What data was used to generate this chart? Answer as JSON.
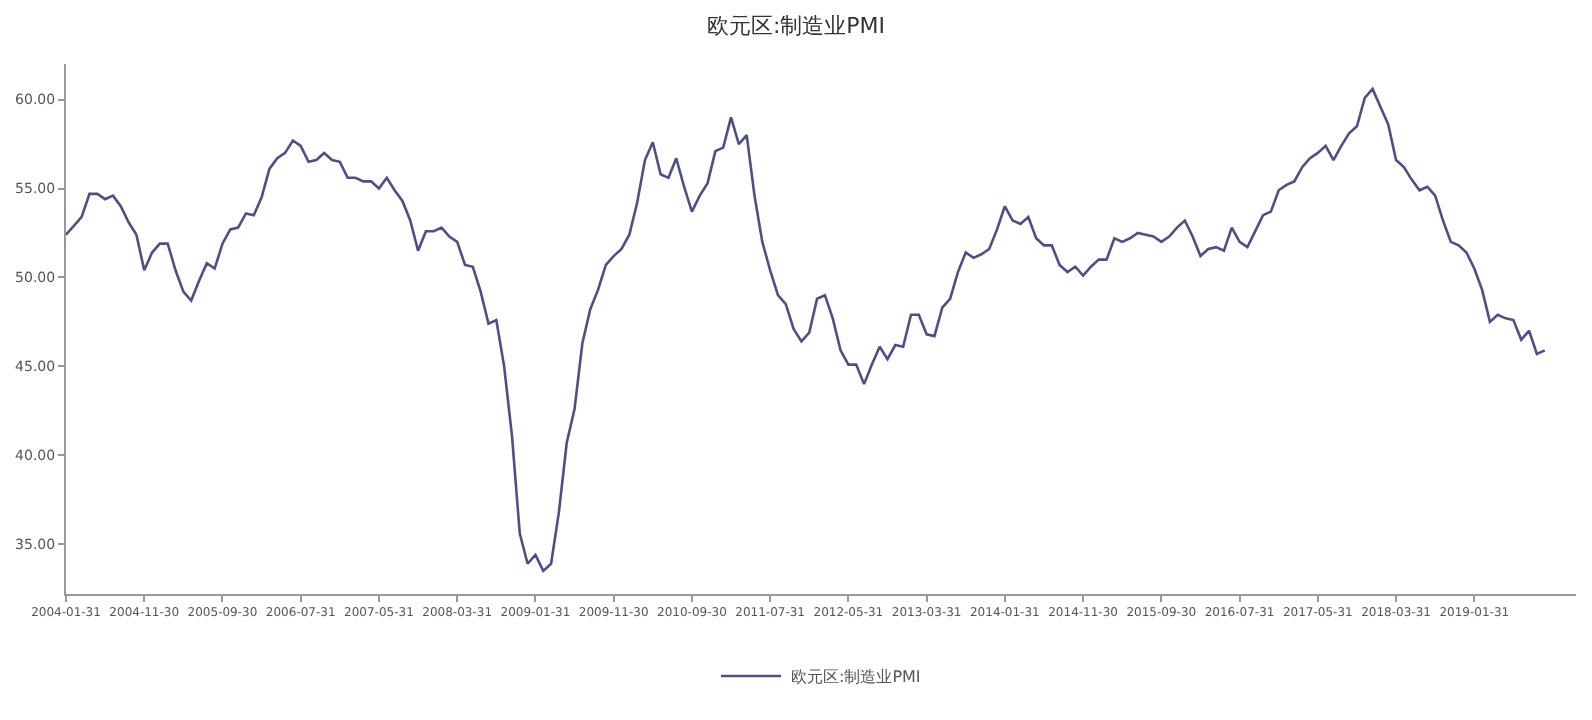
{
  "chart_data": {
    "type": "line",
    "title": "欧元区:制造业PMI",
    "categories": [
      "2004-01-31",
      null,
      null,
      null,
      null,
      null,
      null,
      null,
      null,
      null,
      "2004-11-30",
      null,
      null,
      null,
      null,
      null,
      null,
      null,
      null,
      null,
      "2005-09-30",
      null,
      null,
      null,
      null,
      null,
      null,
      null,
      null,
      null,
      "2006-07-31",
      null,
      null,
      null,
      null,
      null,
      null,
      null,
      null,
      null,
      "2007-05-31",
      null,
      null,
      null,
      null,
      null,
      null,
      null,
      null,
      null,
      "2008-03-31",
      null,
      null,
      null,
      null,
      null,
      null,
      null,
      null,
      null,
      "2009-01-31",
      null,
      null,
      null,
      null,
      null,
      null,
      null,
      null,
      null,
      "2009-11-30",
      null,
      null,
      null,
      null,
      null,
      null,
      null,
      null,
      null,
      "2010-09-30",
      null,
      null,
      null,
      null,
      null,
      null,
      null,
      null,
      null,
      "2011-07-31",
      null,
      null,
      null,
      null,
      null,
      null,
      null,
      null,
      null,
      "2012-05-31",
      null,
      null,
      null,
      null,
      null,
      null,
      null,
      null,
      null,
      "2013-03-31",
      null,
      null,
      null,
      null,
      null,
      null,
      null,
      null,
      null,
      "2014-01-31",
      null,
      null,
      null,
      null,
      null,
      null,
      null,
      null,
      null,
      "2014-11-30",
      null,
      null,
      null,
      null,
      null,
      null,
      null,
      null,
      null,
      "2015-09-30",
      null,
      null,
      null,
      null,
      null,
      null,
      null,
      null,
      null,
      "2016-07-31",
      null,
      null,
      null,
      null,
      null,
      null,
      null,
      null,
      null,
      "2017-05-31",
      null,
      null,
      null,
      null,
      null,
      null,
      null,
      null,
      null,
      "2018-03-31",
      null,
      null,
      null,
      null,
      null,
      null,
      null,
      null,
      null,
      "2019-01-31",
      null,
      null,
      null,
      null,
      null,
      null,
      null,
      null,
      null
    ],
    "series": [
      {
        "name": "欧元区:制造业PMI",
        "color": "#4b5088",
        "values": [
          52.4,
          52.9,
          53.4,
          54.7,
          54.7,
          54.4,
          54.6,
          54.0,
          53.1,
          52.4,
          50.4,
          51.4,
          51.9,
          51.9,
          50.4,
          49.2,
          48.7,
          49.8,
          50.8,
          50.5,
          51.9,
          52.7,
          52.8,
          53.6,
          53.5,
          54.5,
          56.1,
          56.7,
          57.0,
          57.7,
          57.4,
          56.5,
          56.6,
          57.0,
          56.6,
          56.5,
          55.6,
          55.6,
          55.4,
          55.4,
          55.0,
          55.6,
          54.9,
          54.3,
          53.2,
          51.5,
          52.6,
          52.6,
          52.8,
          52.3,
          52.0,
          50.7,
          50.6,
          49.2,
          47.4,
          47.6,
          45.0,
          41.1,
          35.6,
          33.9,
          34.4,
          33.5,
          33.9,
          36.8,
          40.7,
          42.6,
          46.3,
          48.2,
          49.3,
          50.7,
          51.2,
          51.6,
          52.4,
          54.2,
          56.6,
          57.6,
          55.8,
          55.6,
          56.7,
          55.1,
          53.7,
          54.6,
          55.3,
          57.1,
          57.3,
          59.0,
          57.5,
          58.0,
          54.6,
          52.0,
          50.4,
          49.0,
          48.5,
          47.1,
          46.4,
          46.9,
          48.8,
          49.0,
          47.7,
          45.9,
          45.1,
          45.1,
          44.0,
          45.1,
          46.1,
          45.4,
          46.2,
          46.1,
          47.9,
          47.9,
          46.8,
          46.7,
          48.3,
          48.8,
          50.3,
          51.4,
          51.1,
          51.3,
          51.6,
          52.7,
          54.0,
          53.2,
          53.0,
          53.4,
          52.2,
          51.8,
          51.8,
          50.7,
          50.3,
          50.6,
          50.1,
          50.6,
          51.0,
          51.0,
          52.2,
          52.0,
          52.2,
          52.5,
          52.4,
          52.3,
          52.0,
          52.3,
          52.8,
          53.2,
          52.3,
          51.2,
          51.6,
          51.7,
          51.5,
          52.8,
          52.0,
          51.7,
          52.6,
          53.5,
          53.7,
          54.9,
          55.2,
          55.4,
          56.2,
          56.7,
          57.0,
          57.4,
          56.6,
          57.4,
          58.1,
          58.5,
          60.1,
          60.6,
          59.6,
          58.6,
          56.6,
          56.2,
          55.5,
          54.9,
          55.1,
          54.6,
          53.2,
          52.0,
          51.8,
          51.4,
          50.5,
          49.3,
          47.5,
          47.9,
          47.7,
          47.6,
          46.5,
          47.0,
          45.7,
          45.9
        ]
      }
    ],
    "ylim": [
      32.2,
      62
    ],
    "yticks": [
      {
        "value": 35,
        "label": "35.00"
      },
      {
        "value": 40,
        "label": "40.00"
      },
      {
        "value": 45,
        "label": "45.00"
      },
      {
        "value": 50,
        "label": "50.00"
      },
      {
        "value": 55,
        "label": "55.00"
      },
      {
        "value": 60,
        "label": "60.00"
      }
    ],
    "grid": false,
    "legend": "bottom",
    "marker": "none",
    "line_style": "solid"
  }
}
